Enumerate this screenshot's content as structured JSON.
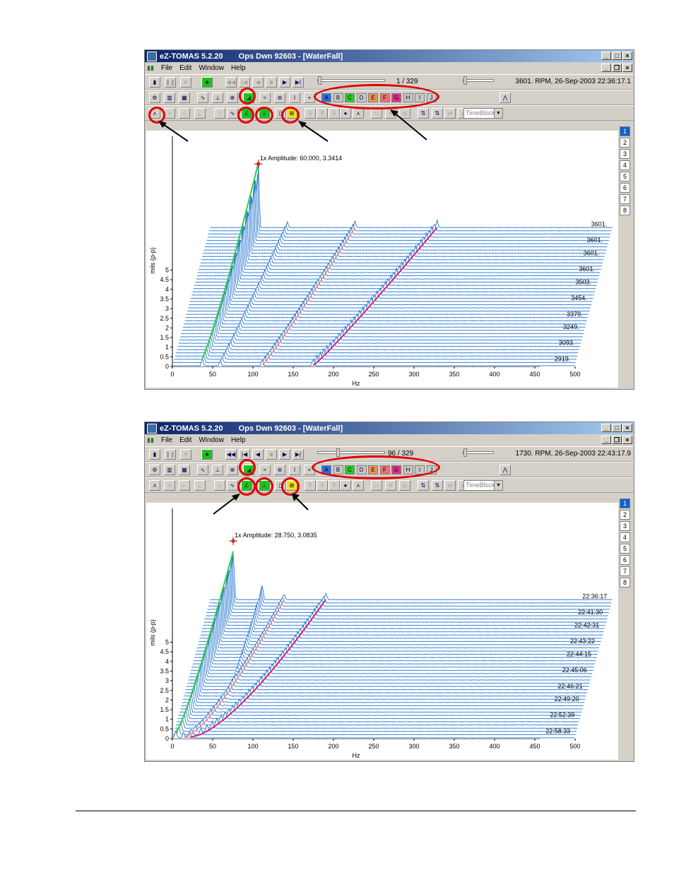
{
  "windows": [
    {
      "app_title": "eZ-TOMAS 5.2.20",
      "doc_title": "Ops Dwn 92603 - [WaterFall]",
      "menu": [
        "File",
        "Edit",
        "Window",
        "Help"
      ],
      "frame_counter": "1 / 329",
      "slider_fraction": 0.0,
      "status": "3601. RPM,   26-Sep-2003 22:36:17.1",
      "layer_buttons": [
        "A",
        "B",
        "C",
        "D",
        "E",
        "F",
        "G",
        "H",
        "I",
        "J"
      ],
      "layer_colors": [
        "#3070e0",
        "#c8c8c8",
        "#20d020",
        "#c8c8c8",
        "#f09050",
        "#f07070",
        "#e03090",
        "#c8c8c8",
        "#c8c8c8",
        "#c8c8c8"
      ],
      "dropdown": "TimeBlock",
      "pages": [
        "1",
        "2",
        "3",
        "4",
        "5",
        "6",
        "7",
        "8"
      ],
      "ylabel": "mils (p-p)",
      "xlabel": "Hz",
      "yticks": [
        "0",
        "0.5",
        "1",
        "1.5",
        "2",
        "2.5",
        "3",
        "3.5",
        "4",
        "4.5",
        "5"
      ],
      "xticks": [
        "0",
        "50",
        "100",
        "150",
        "200",
        "250",
        "300",
        "350",
        "400",
        "450",
        "500"
      ],
      "cursor_label": "1x Amplitude:  60.000, 3.3414",
      "trace_labels": [
        "3601.",
        "3601.",
        "3601.",
        "3601.",
        "3503.",
        "3454.",
        "3379.",
        "3249.",
        "3093.",
        "2919."
      ]
    },
    {
      "app_title": "eZ-TOMAS 5.2.20",
      "doc_title": "Ops Dwn 92603 - [WaterFall]",
      "menu": [
        "File",
        "Edit",
        "Window",
        "Help"
      ],
      "frame_counter": "96 / 329",
      "slider_fraction": 0.29,
      "status": "1730. RPM,   26-Sep-2003 22:43:17.9",
      "layer_buttons": [
        "A",
        "B",
        "C",
        "D",
        "E",
        "F",
        "G",
        "H",
        "I",
        "J"
      ],
      "layer_colors": [
        "#3070e0",
        "#c8c8c8",
        "#20d020",
        "#c8c8c8",
        "#f09050",
        "#f07070",
        "#e03090",
        "#c8c8c8",
        "#c8c8c8",
        "#c8c8c8"
      ],
      "dropdown": "TimeBlock",
      "pages": [
        "1",
        "2",
        "3",
        "4",
        "5",
        "6",
        "7",
        "8"
      ],
      "ylabel": "mils (p-p)",
      "xlabel": "Hz",
      "yticks": [
        "0",
        "0.5",
        "1",
        "1.5",
        "2",
        "2.5",
        "3",
        "3.5",
        "4",
        "4.5",
        "5"
      ],
      "xticks": [
        "0",
        "50",
        "100",
        "150",
        "200",
        "250",
        "300",
        "350",
        "400",
        "450",
        "500"
      ],
      "cursor_label": "1x Amplitude:  28.750, 3.0835",
      "trace_labels": [
        "22:36:17",
        "22:41:30",
        "22:42:31",
        "22:43:22",
        "22:44:15",
        "22:45:06",
        "22:46:21",
        "22:49:20",
        "22:52:39",
        "22:58:33"
      ]
    }
  ]
}
